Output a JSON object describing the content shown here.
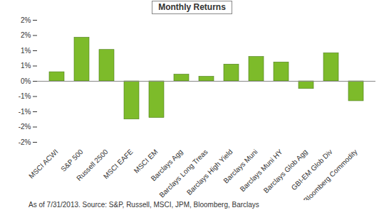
{
  "chart_data": {
    "type": "bar",
    "title": "Monthly Returns",
    "categories": [
      "MSCI ACWI",
      "S&P 500",
      "Russell 2500",
      "MSCI EAFE",
      "MSCI EM",
      "Barclays Agg",
      "Barclays Long Treas",
      "Barclays High Yield",
      "Barclays Muni",
      "Barclays Muni HY",
      "Barclays Glob Agg",
      "GBI-EM Glob Div",
      "Bloomberg Commodity"
    ],
    "values": [
      0.3,
      1.43,
      1.03,
      -1.25,
      -1.2,
      0.22,
      0.15,
      0.55,
      0.8,
      0.62,
      -0.25,
      0.92,
      -0.65
    ],
    "color": "#7dbb2a",
    "ylim": [
      -2,
      2
    ],
    "yticks": [
      {
        "value": -2,
        "label": "-2%"
      },
      {
        "value": -1.5,
        "label": "-2%"
      },
      {
        "value": -1,
        "label": "-1%"
      },
      {
        "value": -0.5,
        "label": "-1%"
      },
      {
        "value": 0,
        "label": "0%"
      },
      {
        "value": 0.5,
        "label": "1%"
      },
      {
        "value": 1,
        "label": "1%"
      },
      {
        "value": 1.5,
        "label": "2%"
      },
      {
        "value": 2,
        "label": "2%"
      }
    ],
    "grid": false,
    "caption": "As of 7/31/2013. Source: S&P, Russell, MSCI, JPM, Bloomberg, Barclays"
  }
}
